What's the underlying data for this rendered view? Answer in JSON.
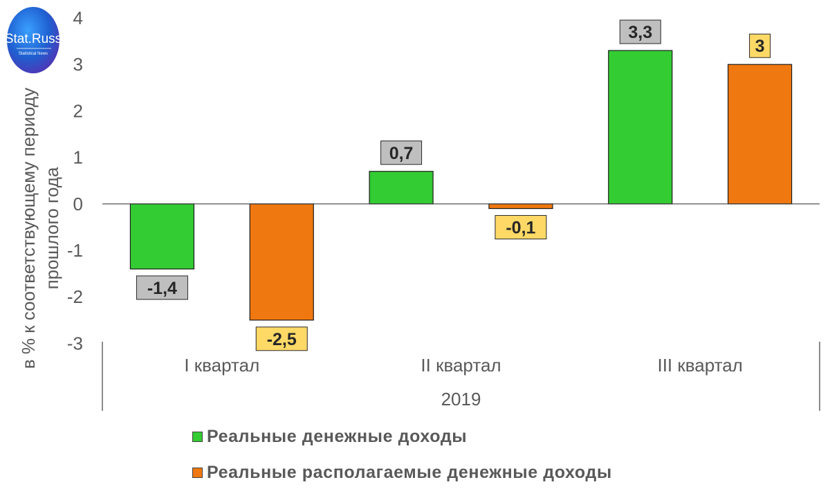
{
  "logo": {
    "main": "Stat.Russ",
    "sub": "Statistical News"
  },
  "chart_data": {
    "type": "bar",
    "ylabel": "в % к соответствующему периоду прошлого года",
    "ylabel_lines": [
      "в % к соответствующему периоду",
      "прошлого года"
    ],
    "ylim": [
      -3,
      4
    ],
    "yticks": [
      4,
      3,
      2,
      1,
      0,
      -1,
      -2,
      -3
    ],
    "grid": false,
    "categories": [
      "I квартал",
      "II квартал",
      "III квартал"
    ],
    "group_label": "2019",
    "series": [
      {
        "name": "Реальные денежные доходы",
        "values": [
          -1.4,
          0.7,
          3.3
        ],
        "labels": [
          "-1,4",
          "0,7",
          "3,3"
        ],
        "color": "#33CC33",
        "label_bg": "#BFBFBF"
      },
      {
        "name": "Реальные располагаемые денежные доходы",
        "values": [
          -2.5,
          -0.1,
          3.0
        ],
        "labels": [
          "-2,5",
          "-0,1",
          "3"
        ],
        "color": "#F07810",
        "label_bg": "#FFD966"
      }
    ],
    "legend_position": "bottom"
  }
}
